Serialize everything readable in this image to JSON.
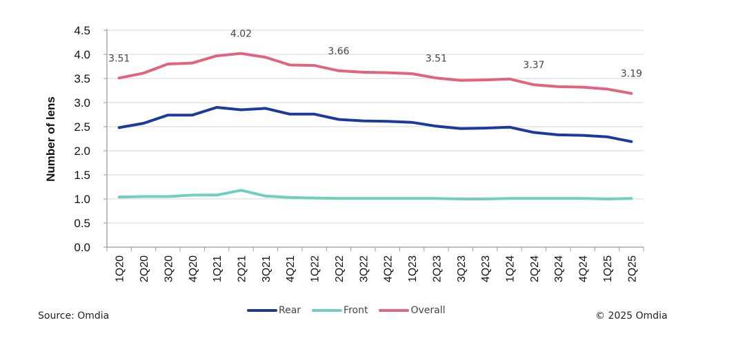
{
  "chart_data": {
    "type": "line",
    "title": "",
    "xlabel": "",
    "ylabel": "Number of lens",
    "ylim": [
      0,
      4.5
    ],
    "yticks": [
      "0.0",
      "0.5",
      "1.0",
      "1.5",
      "2.0",
      "2.5",
      "3.0",
      "3.5",
      "4.0",
      "4.5"
    ],
    "grid": true,
    "legend_position": "bottom",
    "categories": [
      "1Q20",
      "2Q20",
      "3Q20",
      "4Q20",
      "1Q21",
      "2Q21",
      "3Q21",
      "4Q21",
      "1Q22",
      "2Q22",
      "3Q22",
      "4Q22",
      "1Q23",
      "2Q23",
      "3Q23",
      "4Q23",
      "1Q24",
      "2Q24",
      "3Q24",
      "4Q24",
      "1Q25",
      "2Q25"
    ],
    "series": [
      {
        "name": "Rear",
        "color": "#1a3a9e",
        "values": [
          2.48,
          2.57,
          2.74,
          2.74,
          2.9,
          2.85,
          2.88,
          2.76,
          2.76,
          2.65,
          2.62,
          2.61,
          2.59,
          2.51,
          2.46,
          2.47,
          2.49,
          2.38,
          2.33,
          2.32,
          2.29,
          2.19
        ]
      },
      {
        "name": "Front",
        "color": "#6fcfbf",
        "values": [
          1.04,
          1.05,
          1.05,
          1.08,
          1.08,
          1.18,
          1.06,
          1.03,
          1.02,
          1.01,
          1.01,
          1.01,
          1.01,
          1.01,
          1.0,
          1.0,
          1.01,
          1.01,
          1.01,
          1.01,
          1.0,
          1.01
        ]
      },
      {
        "name": "Overall",
        "color": "#e0647e",
        "values": [
          3.51,
          3.61,
          3.8,
          3.82,
          3.97,
          4.02,
          3.94,
          3.78,
          3.77,
          3.66,
          3.63,
          3.62,
          3.6,
          3.51,
          3.46,
          3.47,
          3.49,
          3.37,
          3.33,
          3.32,
          3.28,
          3.19
        ]
      }
    ],
    "annotations": [
      {
        "series": "Overall",
        "category": "1Q20",
        "text": "3.51"
      },
      {
        "series": "Overall",
        "category": "2Q21",
        "text": "4.02"
      },
      {
        "series": "Overall",
        "category": "2Q22",
        "text": "3.66"
      },
      {
        "series": "Overall",
        "category": "2Q23",
        "text": "3.51"
      },
      {
        "series": "Overall",
        "category": "2Q24",
        "text": "3.37"
      },
      {
        "series": "Overall",
        "category": "2Q25",
        "text": "3.19"
      }
    ]
  },
  "footer": {
    "source": "Source: Omdia",
    "copyright": "© 2025 Omdia"
  },
  "legend": [
    {
      "label": "Rear",
      "color": "#1a3a9e"
    },
    {
      "label": "Front",
      "color": "#6fcfbf"
    },
    {
      "label": "Overall",
      "color": "#e0647e"
    }
  ]
}
